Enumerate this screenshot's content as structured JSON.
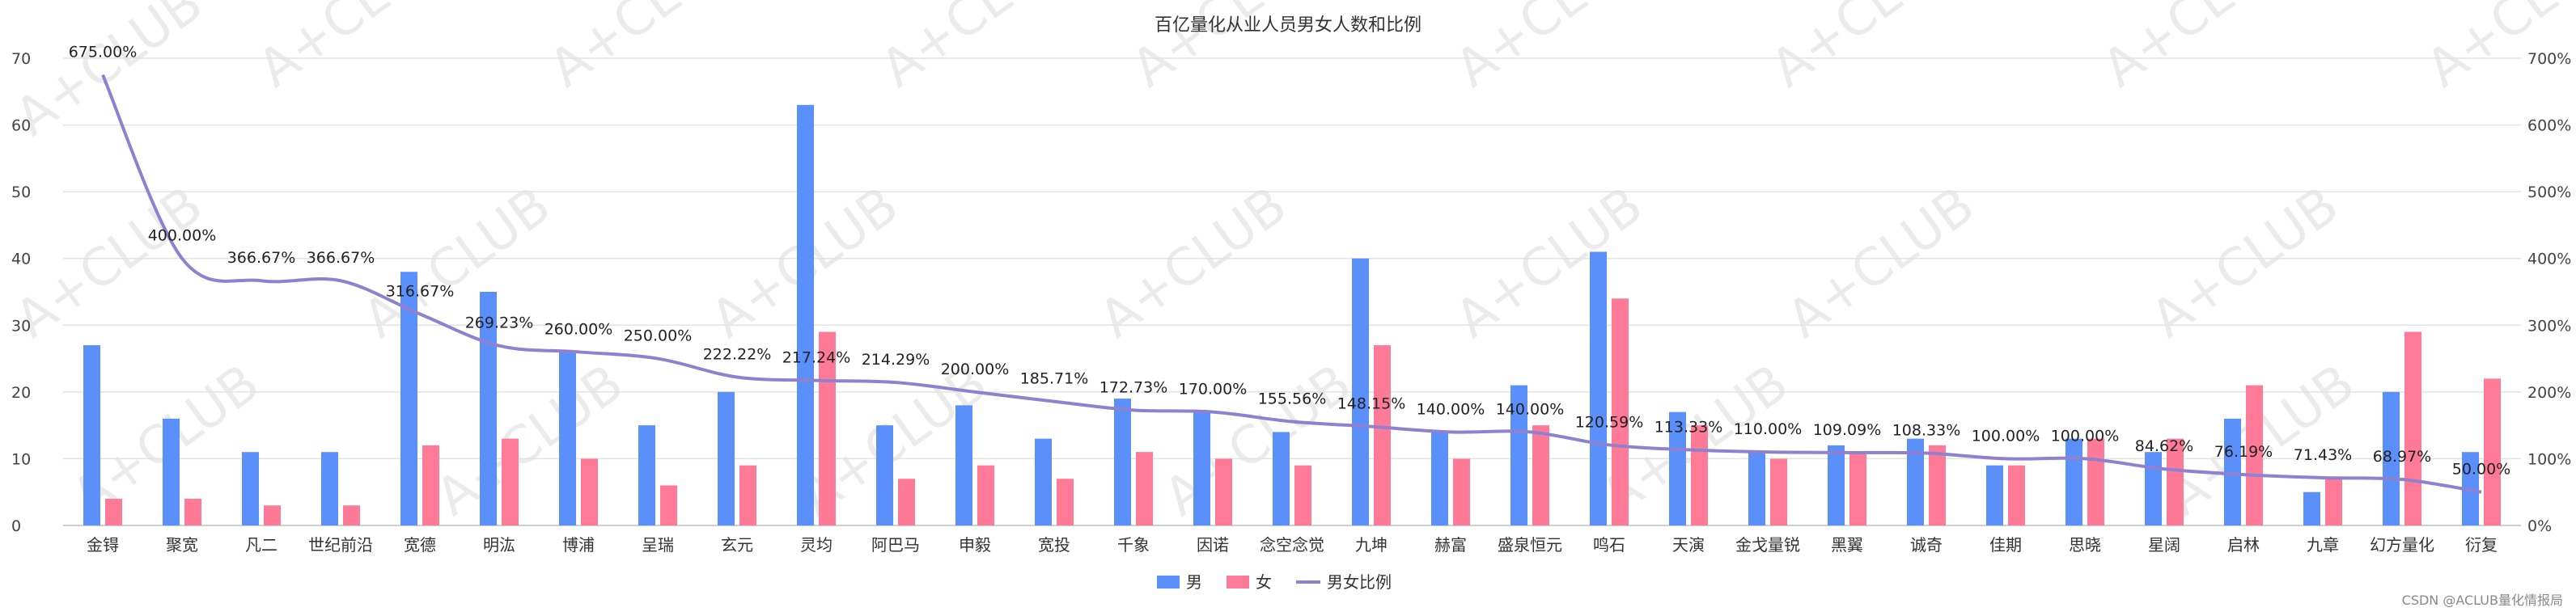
{
  "watermark_text": "A+CLUB",
  "credit": "CSDN @ACLUB量化情报局",
  "colors": {
    "male": "#5b8ff9",
    "female": "#ff7a96",
    "ratio": "#9080d0",
    "grid": "#e3e3e3",
    "axis": "#bfbfbf"
  },
  "chart_data": {
    "type": "bar",
    "title": "百亿量化从业人员男女人数和比例",
    "categories": [
      "金锝",
      "聚宽",
      "凡二",
      "世纪前沿",
      "宽德",
      "明汯",
      "博浦",
      "呈瑞",
      "玄元",
      "灵均",
      "阿巴马",
      "申毅",
      "宽投",
      "千象",
      "因诺",
      "念空念觉",
      "九坤",
      "赫富",
      "盛泉恒元",
      "鸣石",
      "天演",
      "金戈量锐",
      "黑翼",
      "诚奇",
      "佳期",
      "思晓",
      "星阔",
      "启林",
      "九章",
      "幻方量化",
      "衍复"
    ],
    "series": [
      {
        "name": "男",
        "type": "bar",
        "axis": "left",
        "values": [
          27,
          16,
          11,
          11,
          38,
          35,
          26,
          15,
          20,
          63,
          15,
          18,
          13,
          19,
          17,
          14,
          40,
          14,
          21,
          41,
          17,
          11,
          12,
          13,
          9,
          13,
          11,
          16,
          5,
          20,
          11
        ]
      },
      {
        "name": "女",
        "type": "bar",
        "axis": "left",
        "values": [
          4,
          4,
          3,
          3,
          12,
          13,
          10,
          6,
          9,
          29,
          7,
          9,
          7,
          11,
          10,
          9,
          27,
          10,
          15,
          34,
          15,
          10,
          11,
          12,
          9,
          13,
          13,
          21,
          7,
          29,
          22
        ]
      },
      {
        "name": "男女比例",
        "type": "line",
        "axis": "right",
        "values": [
          675,
          400,
          366.67,
          366.67,
          316.67,
          269.23,
          260,
          250,
          222.22,
          217.24,
          214.29,
          200,
          185.71,
          172.73,
          170,
          155.56,
          148.15,
          140,
          140,
          120.59,
          113.33,
          110,
          109.09,
          108.33,
          100,
          100,
          84.62,
          76.19,
          71.43,
          68.97,
          50
        ],
        "labels": [
          "675.00%",
          "400.00%",
          "366.67%",
          "366.67%",
          "316.67%",
          "269.23%",
          "260.00%",
          "250.00%",
          "222.22%",
          "217.24%",
          "214.29%",
          "200.00%",
          "185.71%",
          "172.73%",
          "170.00%",
          "155.56%",
          "148.15%",
          "140.00%",
          "140.00%",
          "120.59%",
          "113.33%",
          "110.00%",
          "109.09%",
          "108.33%",
          "100.00%",
          "100.00%",
          "84.62%",
          "76.19%",
          "71.43%",
          "68.97%",
          "50.00%"
        ]
      }
    ],
    "y_left": {
      "range": [
        0,
        70
      ],
      "ticks": [
        "0",
        "10",
        "20",
        "30",
        "40",
        "50",
        "60",
        "70"
      ]
    },
    "y_right": {
      "range": [
        0,
        700
      ],
      "ticks": [
        "0%",
        "100%",
        "200%",
        "300%",
        "400%",
        "500%",
        "600%",
        "700%"
      ]
    },
    "grid": true,
    "legend_position": "bottom-center"
  }
}
